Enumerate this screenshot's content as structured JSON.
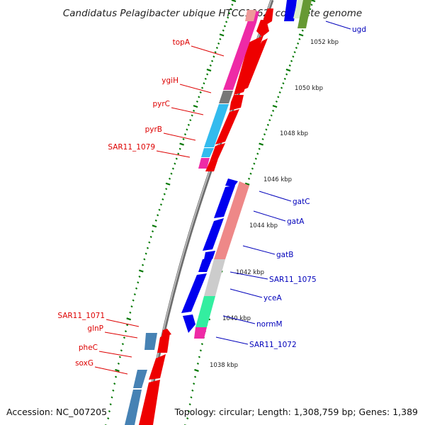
{
  "title": "Candidatus Pelagibacter ubique HTCC1062, complete genome",
  "footer": {
    "accession": "Accession: NC_007205",
    "summary": "Topology: circular; Length: 1,308,759 bp; Genes: 1,389"
  },
  "colors": {
    "forward_label": "#dd0000",
    "reverse_label": "#0000bb",
    "backbone": "#8a8a8a",
    "tick": "#006600",
    "cds_forward": "#ff0000",
    "cds_reverse": "#0000ee",
    "cog_magenta": "#ee2aa6",
    "cog_gray": "#777777",
    "cog_cyan": "#33bbee",
    "cog_pink": "#ee8888",
    "cog_silver": "#cccccc",
    "cog_mint": "#33eea0",
    "cog_steel": "#4682b4",
    "cog_olive": "#669933"
  },
  "scale_labels": [
    "1052 kbp",
    "1050 kbp",
    "1048 kbp",
    "1046 kbp",
    "1044 kbp",
    "1042 kbp",
    "1040 kbp",
    "1038 kbp"
  ],
  "forward_genes": [
    {
      "name": "topA",
      "icon": "none"
    },
    {
      "name": "ygiH",
      "icon": "none"
    },
    {
      "name": "pyrC",
      "icon": "none"
    },
    {
      "name": "pyrB",
      "icon": "none"
    },
    {
      "name": "SAR11_1079",
      "icon": "none"
    },
    {
      "name": "SAR11_1071",
      "icon": "none"
    },
    {
      "name": "glnP",
      "icon": "none"
    },
    {
      "name": "pheC",
      "icon": "none"
    },
    {
      "name": "soxG",
      "icon": "none"
    }
  ],
  "reverse_genes": [
    {
      "name": "ugd"
    },
    {
      "name": "gatC"
    },
    {
      "name": "gatA"
    },
    {
      "name": "gatB"
    },
    {
      "name": "SAR11_1075"
    },
    {
      "name": "yceA"
    },
    {
      "name": "normM"
    },
    {
      "name": "SAR11_1072"
    }
  ]
}
